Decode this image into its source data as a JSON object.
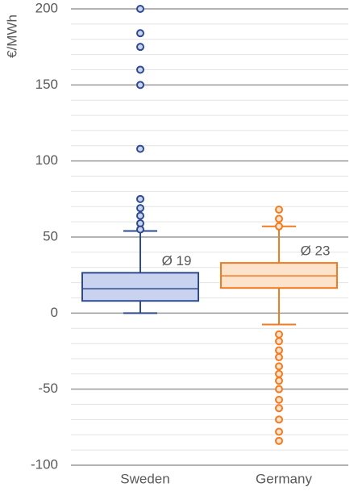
{
  "chart_data": {
    "type": "box",
    "y_label": "€/MWh",
    "categories": [
      "Sweden",
      "Germany"
    ],
    "ylim": [
      -100,
      200
    ],
    "yticks": [
      -100,
      -50,
      0,
      50,
      100,
      150,
      200
    ],
    "minor_yticks": [
      -90,
      -80,
      -70,
      -60,
      -40,
      -30,
      -20,
      -10,
      10,
      20,
      30,
      40,
      60,
      70,
      80,
      90,
      110,
      120,
      130,
      140,
      160,
      170,
      180,
      190
    ],
    "grid": true,
    "boxes": [
      {
        "color": "#2f4b8f",
        "fill": "#c9d3f0",
        "whisker_low": 0,
        "q1": 8,
        "median": 16,
        "q3": 26.5,
        "whisker_high": 54,
        "outliers": [
          200,
          184,
          175,
          160,
          150,
          108,
          75,
          69,
          64,
          59,
          55
        ],
        "mean": 19,
        "mean_label": "Ø 19"
      },
      {
        "color": "#f27b22",
        "fill": "#fde2cc",
        "whisker_low": -7.5,
        "q1": 16.5,
        "median": 24.5,
        "q3": 33,
        "whisker_high": 57,
        "outliers": [
          68,
          62,
          57,
          -14,
          -18.5,
          -24.5,
          -29,
          -35,
          -40,
          -44.5,
          -50,
          -57,
          -62.5,
          -70,
          -78,
          -84
        ],
        "mean": 23,
        "mean_label": "Ø 23"
      }
    ]
  }
}
